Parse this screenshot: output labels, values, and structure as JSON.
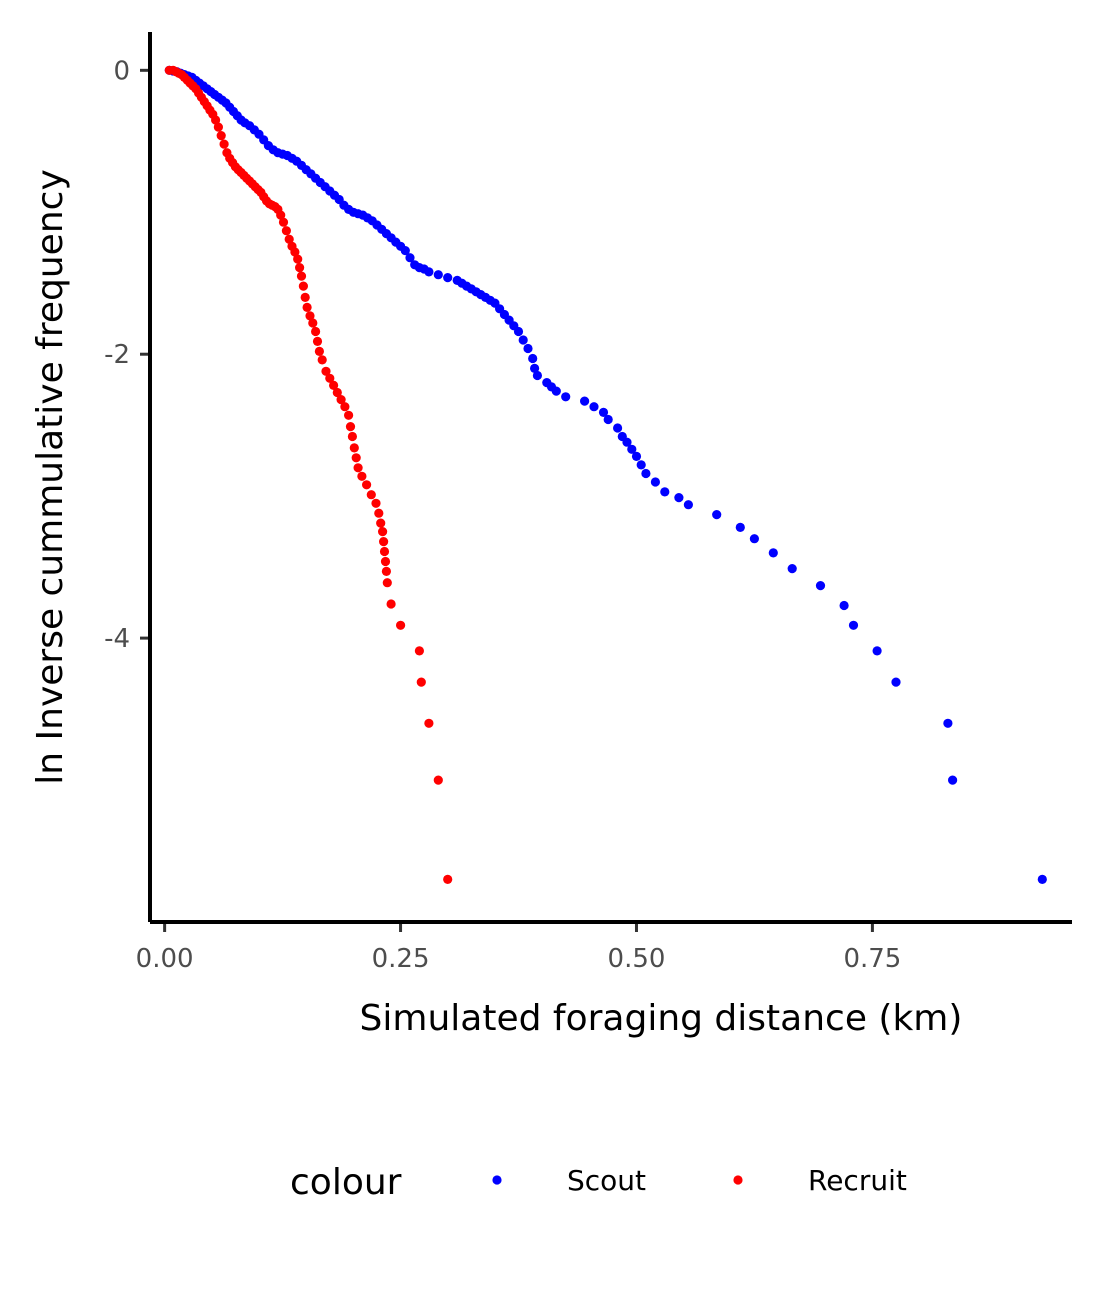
{
  "chart_data": {
    "type": "scatter",
    "xlabel": "Simulated foraging distance (km)",
    "ylabel": "ln Inverse cummulative frequency",
    "xlim": [
      -0.0155,
      0.9615
    ],
    "ylim": [
      -6.0,
      0.27
    ],
    "x_ticks": [
      0.0,
      0.25,
      0.5,
      0.75
    ],
    "x_tick_labels": [
      "0.00",
      "0.25",
      "0.50",
      "0.75"
    ],
    "y_ticks": [
      0,
      -2,
      -4
    ],
    "y_tick_labels": [
      "0",
      "-2",
      "-4"
    ],
    "grid": false,
    "legend": {
      "title": "colour",
      "position": "bottom",
      "entries": [
        {
          "label": "Scout",
          "color": "#0000ff"
        },
        {
          "label": "Recruit",
          "color": "#ff0000"
        }
      ]
    },
    "series": [
      {
        "name": "Scout",
        "color": "#0000ff",
        "points": [
          [
            0.005,
            0.0
          ],
          [
            0.009,
            -0.005
          ],
          [
            0.013,
            -0.01
          ],
          [
            0.017,
            -0.02
          ],
          [
            0.021,
            -0.03
          ],
          [
            0.025,
            -0.04
          ],
          [
            0.029,
            -0.05
          ],
          [
            0.033,
            -0.07
          ],
          [
            0.037,
            -0.09
          ],
          [
            0.041,
            -0.11
          ],
          [
            0.045,
            -0.13
          ],
          [
            0.049,
            -0.15
          ],
          [
            0.053,
            -0.17
          ],
          [
            0.057,
            -0.19
          ],
          [
            0.061,
            -0.21
          ],
          [
            0.065,
            -0.23
          ],
          [
            0.069,
            -0.26
          ],
          [
            0.073,
            -0.29
          ],
          [
            0.077,
            -0.32
          ],
          [
            0.081,
            -0.35
          ],
          [
            0.085,
            -0.37
          ],
          [
            0.09,
            -0.39
          ],
          [
            0.095,
            -0.42
          ],
          [
            0.1,
            -0.45
          ],
          [
            0.105,
            -0.49
          ],
          [
            0.11,
            -0.53
          ],
          [
            0.115,
            -0.56
          ],
          [
            0.12,
            -0.58
          ],
          [
            0.125,
            -0.59
          ],
          [
            0.13,
            -0.6
          ],
          [
            0.135,
            -0.62
          ],
          [
            0.14,
            -0.64
          ],
          [
            0.145,
            -0.67
          ],
          [
            0.15,
            -0.7
          ],
          [
            0.155,
            -0.73
          ],
          [
            0.16,
            -0.76
          ],
          [
            0.165,
            -0.79
          ],
          [
            0.17,
            -0.82
          ],
          [
            0.175,
            -0.85
          ],
          [
            0.18,
            -0.88
          ],
          [
            0.185,
            -0.91
          ],
          [
            0.19,
            -0.95
          ],
          [
            0.195,
            -0.98
          ],
          [
            0.2,
            -1.0
          ],
          [
            0.205,
            -1.01
          ],
          [
            0.21,
            -1.02
          ],
          [
            0.215,
            -1.04
          ],
          [
            0.22,
            -1.06
          ],
          [
            0.225,
            -1.09
          ],
          [
            0.23,
            -1.12
          ],
          [
            0.235,
            -1.15
          ],
          [
            0.24,
            -1.18
          ],
          [
            0.245,
            -1.21
          ],
          [
            0.25,
            -1.24
          ],
          [
            0.255,
            -1.27
          ],
          [
            0.26,
            -1.32
          ],
          [
            0.265,
            -1.37
          ],
          [
            0.27,
            -1.39
          ],
          [
            0.275,
            -1.4
          ],
          [
            0.28,
            -1.42
          ],
          [
            0.29,
            -1.44
          ],
          [
            0.3,
            -1.46
          ],
          [
            0.31,
            -1.48
          ],
          [
            0.315,
            -1.5
          ],
          [
            0.32,
            -1.52
          ],
          [
            0.325,
            -1.54
          ],
          [
            0.33,
            -1.56
          ],
          [
            0.335,
            -1.58
          ],
          [
            0.34,
            -1.6
          ],
          [
            0.345,
            -1.62
          ],
          [
            0.35,
            -1.64
          ],
          [
            0.355,
            -1.68
          ],
          [
            0.36,
            -1.72
          ],
          [
            0.365,
            -1.76
          ],
          [
            0.37,
            -1.8
          ],
          [
            0.375,
            -1.84
          ],
          [
            0.38,
            -1.9
          ],
          [
            0.385,
            -1.96
          ],
          [
            0.39,
            -2.03
          ],
          [
            0.392,
            -2.1
          ],
          [
            0.395,
            -2.15
          ],
          [
            0.405,
            -2.2
          ],
          [
            0.41,
            -2.23
          ],
          [
            0.415,
            -2.26
          ],
          [
            0.425,
            -2.3
          ],
          [
            0.445,
            -2.33
          ],
          [
            0.455,
            -2.37
          ],
          [
            0.465,
            -2.41
          ],
          [
            0.47,
            -2.46
          ],
          [
            0.48,
            -2.52
          ],
          [
            0.485,
            -2.58
          ],
          [
            0.49,
            -2.62
          ],
          [
            0.495,
            -2.67
          ],
          [
            0.5,
            -2.72
          ],
          [
            0.505,
            -2.78
          ],
          [
            0.51,
            -2.84
          ],
          [
            0.52,
            -2.9
          ],
          [
            0.53,
            -2.97
          ],
          [
            0.545,
            -3.01
          ],
          [
            0.555,
            -3.06
          ],
          [
            0.585,
            -3.13
          ],
          [
            0.61,
            -3.22
          ],
          [
            0.625,
            -3.3
          ],
          [
            0.645,
            -3.4
          ],
          [
            0.665,
            -3.51
          ],
          [
            0.695,
            -3.63
          ],
          [
            0.72,
            -3.77
          ],
          [
            0.73,
            -3.91
          ],
          [
            0.755,
            -4.09
          ],
          [
            0.775,
            -4.31
          ],
          [
            0.83,
            -4.6
          ],
          [
            0.835,
            -5.0
          ],
          [
            0.93,
            -5.7
          ]
        ]
      },
      {
        "name": "Recruit",
        "color": "#ff0000",
        "points": [
          [
            0.005,
            0.0
          ],
          [
            0.009,
            0.0
          ],
          [
            0.012,
            -0.01
          ],
          [
            0.015,
            -0.02
          ],
          [
            0.018,
            -0.03
          ],
          [
            0.021,
            -0.05
          ],
          [
            0.024,
            -0.07
          ],
          [
            0.027,
            -0.09
          ],
          [
            0.03,
            -0.11
          ],
          [
            0.033,
            -0.13
          ],
          [
            0.036,
            -0.16
          ],
          [
            0.039,
            -0.19
          ],
          [
            0.042,
            -0.22
          ],
          [
            0.045,
            -0.25
          ],
          [
            0.048,
            -0.28
          ],
          [
            0.051,
            -0.31
          ],
          [
            0.054,
            -0.35
          ],
          [
            0.057,
            -0.4
          ],
          [
            0.06,
            -0.46
          ],
          [
            0.063,
            -0.52
          ],
          [
            0.066,
            -0.58
          ],
          [
            0.069,
            -0.62
          ],
          [
            0.072,
            -0.65
          ],
          [
            0.075,
            -0.68
          ],
          [
            0.078,
            -0.7
          ],
          [
            0.081,
            -0.72
          ],
          [
            0.084,
            -0.74
          ],
          [
            0.087,
            -0.76
          ],
          [
            0.09,
            -0.78
          ],
          [
            0.093,
            -0.8
          ],
          [
            0.096,
            -0.82
          ],
          [
            0.099,
            -0.84
          ],
          [
            0.102,
            -0.86
          ],
          [
            0.105,
            -0.89
          ],
          [
            0.108,
            -0.92
          ],
          [
            0.111,
            -0.94
          ],
          [
            0.114,
            -0.95
          ],
          [
            0.117,
            -0.96
          ],
          [
            0.12,
            -0.98
          ],
          [
            0.123,
            -1.02
          ],
          [
            0.126,
            -1.07
          ],
          [
            0.129,
            -1.13
          ],
          [
            0.132,
            -1.19
          ],
          [
            0.135,
            -1.24
          ],
          [
            0.138,
            -1.28
          ],
          [
            0.141,
            -1.33
          ],
          [
            0.143,
            -1.39
          ],
          [
            0.145,
            -1.45
          ],
          [
            0.147,
            -1.52
          ],
          [
            0.149,
            -1.6
          ],
          [
            0.151,
            -1.67
          ],
          [
            0.154,
            -1.73
          ],
          [
            0.157,
            -1.78
          ],
          [
            0.16,
            -1.84
          ],
          [
            0.162,
            -1.91
          ],
          [
            0.164,
            -1.98
          ],
          [
            0.167,
            -2.04
          ],
          [
            0.171,
            -2.12
          ],
          [
            0.175,
            -2.17
          ],
          [
            0.179,
            -2.22
          ],
          [
            0.183,
            -2.27
          ],
          [
            0.187,
            -2.32
          ],
          [
            0.191,
            -2.37
          ],
          [
            0.195,
            -2.43
          ],
          [
            0.197,
            -2.51
          ],
          [
            0.199,
            -2.58
          ],
          [
            0.201,
            -2.66
          ],
          [
            0.203,
            -2.73
          ],
          [
            0.205,
            -2.8
          ],
          [
            0.209,
            -2.86
          ],
          [
            0.214,
            -2.92
          ],
          [
            0.219,
            -2.99
          ],
          [
            0.224,
            -3.05
          ],
          [
            0.227,
            -3.12
          ],
          [
            0.229,
            -3.19
          ],
          [
            0.231,
            -3.25
          ],
          [
            0.232,
            -3.32
          ],
          [
            0.233,
            -3.39
          ],
          [
            0.234,
            -3.46
          ],
          [
            0.235,
            -3.53
          ],
          [
            0.236,
            -3.61
          ],
          [
            0.24,
            -3.76
          ],
          [
            0.25,
            -3.91
          ],
          [
            0.27,
            -4.09
          ],
          [
            0.272,
            -4.31
          ],
          [
            0.28,
            -4.6
          ],
          [
            0.29,
            -5.0
          ],
          [
            0.3,
            -5.7
          ]
        ]
      }
    ]
  }
}
